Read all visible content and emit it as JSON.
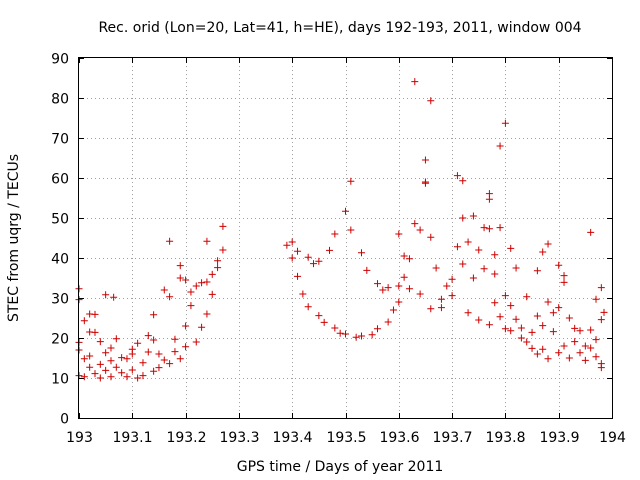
{
  "chart_data": {
    "type": "scatter",
    "title": "Rec. orid (Lon=20, Lat=41, h=HE), days 192-193, 2011, window 004",
    "xlabel": "GPS time / Days of year 2011",
    "ylabel": "STEC from uqrg / TECUs",
    "xlim": [
      193,
      194
    ],
    "ylim": [
      0,
      90
    ],
    "x_ticks": [
      "193",
      "193.1",
      "193.2",
      "193.3",
      "193.4",
      "193.5",
      "193.6",
      "193.7",
      "193.8",
      "193.9",
      "194"
    ],
    "y_ticks": [
      "0",
      "10",
      "20",
      "30",
      "40",
      "50",
      "60",
      "70",
      "80",
      "90"
    ],
    "grid": true,
    "marker": "plus",
    "color": "#cc0000",
    "series": [
      {
        "name": "STEC",
        "points": [
          [
            193.0,
            10.6
          ],
          [
            193.0,
            17.0
          ],
          [
            193.0,
            18.9
          ],
          [
            193.0,
            29.6
          ],
          [
            193.0,
            32.3
          ],
          [
            193.01,
            14.8
          ],
          [
            193.01,
            24.3
          ],
          [
            193.01,
            10.3
          ],
          [
            193.02,
            21.5
          ],
          [
            193.02,
            26.0
          ],
          [
            193.02,
            12.7
          ],
          [
            193.02,
            15.5
          ],
          [
            193.03,
            11.1
          ],
          [
            193.03,
            21.4
          ],
          [
            193.03,
            25.9
          ],
          [
            193.04,
            13.4
          ],
          [
            193.04,
            19.1
          ],
          [
            193.04,
            10.0
          ],
          [
            193.05,
            16.3
          ],
          [
            193.05,
            11.9
          ],
          [
            193.05,
            30.8
          ],
          [
            193.06,
            10.3
          ],
          [
            193.06,
            17.5
          ],
          [
            193.06,
            14.3
          ],
          [
            193.065,
            30.2
          ],
          [
            193.07,
            12.7
          ],
          [
            193.07,
            19.8
          ],
          [
            193.08,
            15.1
          ],
          [
            193.08,
            11.3
          ],
          [
            193.09,
            10.3
          ],
          [
            193.09,
            14.8
          ],
          [
            193.1,
            17.2
          ],
          [
            193.1,
            12.0
          ],
          [
            193.1,
            16.0
          ],
          [
            193.11,
            10.0
          ],
          [
            193.11,
            18.7
          ],
          [
            193.12,
            13.8
          ],
          [
            193.12,
            10.6
          ],
          [
            193.13,
            20.6
          ],
          [
            193.13,
            16.5
          ],
          [
            193.14,
            11.7
          ],
          [
            193.14,
            19.5
          ],
          [
            193.14,
            25.8
          ],
          [
            193.15,
            12.6
          ],
          [
            193.15,
            16.0
          ],
          [
            193.16,
            32.0
          ],
          [
            193.16,
            14.5
          ],
          [
            193.17,
            13.6
          ],
          [
            193.17,
            44.2
          ],
          [
            193.17,
            30.3
          ],
          [
            193.18,
            16.6
          ],
          [
            193.18,
            19.7
          ],
          [
            193.19,
            38.1
          ],
          [
            193.19,
            14.8
          ],
          [
            193.19,
            35.0
          ],
          [
            193.2,
            23.0
          ],
          [
            193.2,
            34.5
          ],
          [
            193.2,
            17.8
          ],
          [
            193.21,
            28.1
          ],
          [
            193.21,
            31.5
          ],
          [
            193.22,
            19.0
          ],
          [
            193.22,
            33.0
          ],
          [
            193.23,
            22.7
          ],
          [
            193.23,
            33.8
          ],
          [
            193.24,
            44.2
          ],
          [
            193.24,
            26.0
          ],
          [
            193.24,
            34.0
          ],
          [
            193.25,
            30.9
          ],
          [
            193.25,
            35.9
          ],
          [
            193.26,
            37.6
          ],
          [
            193.26,
            39.3
          ],
          [
            193.27,
            42.0
          ],
          [
            193.27,
            47.9
          ],
          [
            193.39,
            43.2
          ],
          [
            193.4,
            44.0
          ],
          [
            193.4,
            40.0
          ],
          [
            193.41,
            41.7
          ],
          [
            193.41,
            35.4
          ],
          [
            193.42,
            31.0
          ],
          [
            193.43,
            40.2
          ],
          [
            193.43,
            27.8
          ],
          [
            193.44,
            38.6
          ],
          [
            193.45,
            25.6
          ],
          [
            193.45,
            39.2
          ],
          [
            193.46,
            23.9
          ],
          [
            193.47,
            41.9
          ],
          [
            193.48,
            22.5
          ],
          [
            193.48,
            46.0
          ],
          [
            193.49,
            21.2
          ],
          [
            193.5,
            51.7
          ],
          [
            193.5,
            21.0
          ],
          [
            193.51,
            59.2
          ],
          [
            193.51,
            47.0
          ],
          [
            193.52,
            20.2
          ],
          [
            193.53,
            41.3
          ],
          [
            193.53,
            20.5
          ],
          [
            193.54,
            36.9
          ],
          [
            193.55,
            20.8
          ],
          [
            193.56,
            33.6
          ],
          [
            193.56,
            22.3
          ],
          [
            193.57,
            32.0
          ],
          [
            193.58,
            24.0
          ],
          [
            193.58,
            32.6
          ],
          [
            193.59,
            27.0
          ],
          [
            193.6,
            29.0
          ],
          [
            193.6,
            46.0
          ],
          [
            193.6,
            33.0
          ],
          [
            193.61,
            40.5
          ],
          [
            193.61,
            35.2
          ],
          [
            193.62,
            32.3
          ],
          [
            193.62,
            39.8
          ],
          [
            193.63,
            48.6
          ],
          [
            193.63,
            84.1
          ],
          [
            193.64,
            47.0
          ],
          [
            193.64,
            31.0
          ],
          [
            193.65,
            64.5
          ],
          [
            193.65,
            59.0
          ],
          [
            193.65,
            58.7
          ],
          [
            193.66,
            79.3
          ],
          [
            193.66,
            45.2
          ],
          [
            193.66,
            27.3
          ],
          [
            193.67,
            37.5
          ],
          [
            193.68,
            27.6
          ],
          [
            193.68,
            29.7
          ],
          [
            193.69,
            33.0
          ],
          [
            193.7,
            30.6
          ],
          [
            193.7,
            34.7
          ],
          [
            193.71,
            42.8
          ],
          [
            193.71,
            60.6
          ],
          [
            193.72,
            38.5
          ],
          [
            193.72,
            50.0
          ],
          [
            193.72,
            59.3
          ],
          [
            193.73,
            26.3
          ],
          [
            193.73,
            44.0
          ],
          [
            193.74,
            50.5
          ],
          [
            193.74,
            35.0
          ],
          [
            193.75,
            24.5
          ],
          [
            193.75,
            42.0
          ],
          [
            193.76,
            47.6
          ],
          [
            193.76,
            37.3
          ],
          [
            193.77,
            23.3
          ],
          [
            193.77,
            56.1
          ],
          [
            193.77,
            54.7
          ],
          [
            193.77,
            47.3
          ],
          [
            193.78,
            36.0
          ],
          [
            193.78,
            40.8
          ],
          [
            193.78,
            28.8
          ],
          [
            193.79,
            68.0
          ],
          [
            193.79,
            47.6
          ],
          [
            193.79,
            25.3
          ],
          [
            193.8,
            73.7
          ],
          [
            193.8,
            30.6
          ],
          [
            193.8,
            22.3
          ],
          [
            193.81,
            42.4
          ],
          [
            193.81,
            28.1
          ],
          [
            193.81,
            21.8
          ],
          [
            193.82,
            24.7
          ],
          [
            193.82,
            37.5
          ],
          [
            193.83,
            20.0
          ],
          [
            193.83,
            22.5
          ],
          [
            193.84,
            19.0
          ],
          [
            193.84,
            30.3
          ],
          [
            193.85,
            17.4
          ],
          [
            193.85,
            21.4
          ],
          [
            193.86,
            16.0
          ],
          [
            193.86,
            25.5
          ],
          [
            193.86,
            36.8
          ],
          [
            193.87,
            41.5
          ],
          [
            193.87,
            23.1
          ],
          [
            193.87,
            17.2
          ],
          [
            193.88,
            43.5
          ],
          [
            193.88,
            29.0
          ],
          [
            193.88,
            14.8
          ],
          [
            193.89,
            26.3
          ],
          [
            193.89,
            21.6
          ],
          [
            193.9,
            38.2
          ],
          [
            193.9,
            16.3
          ],
          [
            193.9,
            27.6
          ],
          [
            193.91,
            35.6
          ],
          [
            193.91,
            18.0
          ],
          [
            193.91,
            33.9
          ],
          [
            193.92,
            15.0
          ],
          [
            193.92,
            25.0
          ],
          [
            193.93,
            19.1
          ],
          [
            193.93,
            22.4
          ],
          [
            193.94,
            16.3
          ],
          [
            193.94,
            21.8
          ],
          [
            193.95,
            18.0
          ],
          [
            193.95,
            14.4
          ],
          [
            193.96,
            46.4
          ],
          [
            193.96,
            17.5
          ],
          [
            193.96,
            22.0
          ],
          [
            193.97,
            29.7
          ],
          [
            193.97,
            15.3
          ],
          [
            193.97,
            19.6
          ],
          [
            193.98,
            24.6
          ],
          [
            193.98,
            32.6
          ],
          [
            193.98,
            13.6
          ],
          [
            193.98,
            12.6
          ],
          [
            193.985,
            26.4
          ]
        ]
      }
    ]
  }
}
